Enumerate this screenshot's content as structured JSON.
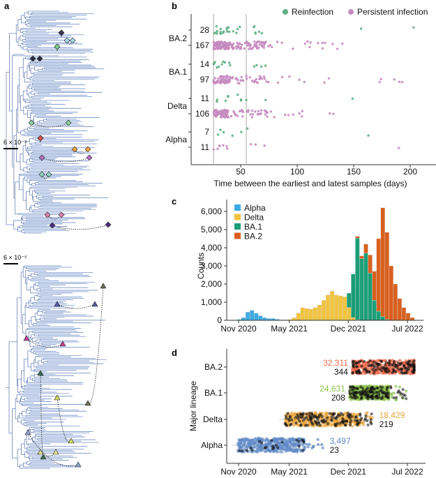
{
  "panels": {
    "a": "a",
    "b": "b",
    "c": "c",
    "d": "d"
  },
  "panel_a": {
    "scale_bar_label": "6 × 10⁻⁵",
    "marker_shapes": [
      "diamond",
      "triangle"
    ],
    "branch_color": "#5b7fc0"
  },
  "chart_data": [
    {
      "panel": "b",
      "type": "scatter",
      "xlabel": "Time between the earliest and latest samples (days)",
      "x_ticks": [
        "50",
        "100",
        "150",
        "200"
      ],
      "xlim": [
        0,
        215
      ],
      "reference_lines_days": [
        26,
        55
      ],
      "legend": [
        {
          "name": "Reinfection",
          "color": "#5fae83"
        },
        {
          "name": "Persistent infection",
          "color": "#c68bc0"
        }
      ],
      "legend_placement": "top-right",
      "categories": [
        "BA.2",
        "BA.1",
        "Delta",
        "Alpha"
      ],
      "rows": [
        {
          "lineage": "BA.2",
          "type": "Reinfection",
          "count": "28",
          "max_days": 203
        },
        {
          "lineage": "BA.2",
          "type": "Persistent infection",
          "count": "167",
          "max_days": 140
        },
        {
          "lineage": "BA.1",
          "type": "Reinfection",
          "count": "14",
          "max_days": 72
        },
        {
          "lineage": "BA.1",
          "type": "Persistent infection",
          "count": "97",
          "max_days": 193
        },
        {
          "lineage": "Delta",
          "type": "Reinfection",
          "count": "11",
          "max_days": 149
        },
        {
          "lineage": "Delta",
          "type": "Persistent infection",
          "count": "106",
          "max_days": 132
        },
        {
          "lineage": "Alpha",
          "type": "Reinfection",
          "count": "7",
          "max_days": 163
        },
        {
          "lineage": "Alpha",
          "type": "Persistent infection",
          "count": "11",
          "max_days": 190
        }
      ]
    },
    {
      "panel": "c",
      "type": "bar",
      "stacked": true,
      "ylabel": "Counts",
      "ylim": [
        0,
        6500
      ],
      "y_ticks": [
        "0",
        "1,000",
        "2,000",
        "3,000",
        "4,000",
        "5,000",
        "6,000"
      ],
      "x_ticks": [
        "Nov 2020",
        "May 2021",
        "Dec 2021",
        "Jul 2022"
      ],
      "bin": "half-month, from Nov 2020",
      "legend_placement": "top-left",
      "series": [
        {
          "name": "Alpha",
          "color": "#3eaae2",
          "values": [
            50,
            150,
            450,
            550,
            400,
            250,
            150,
            100,
            100,
            60,
            30,
            10,
            0,
            0,
            0,
            0,
            0,
            0,
            0,
            0,
            0,
            0,
            0,
            0,
            0,
            0,
            0,
            0,
            0,
            0,
            0,
            0,
            0,
            0,
            0,
            0,
            0,
            0,
            0,
            0,
            0,
            0
          ]
        },
        {
          "name": "Delta",
          "color": "#f1c340",
          "values": [
            0,
            0,
            0,
            0,
            0,
            0,
            0,
            0,
            0,
            0,
            0,
            20,
            50,
            150,
            400,
            700,
            650,
            620,
            700,
            850,
            1100,
            1400,
            1600,
            1400,
            1350,
            1300,
            700,
            150,
            30,
            0,
            0,
            0,
            0,
            0,
            0,
            0,
            0,
            0,
            0,
            0,
            0,
            0
          ]
        },
        {
          "name": "BA.1",
          "color": "#1b9e77",
          "values": [
            0,
            0,
            0,
            0,
            0,
            0,
            0,
            0,
            0,
            0,
            0,
            0,
            0,
            0,
            0,
            0,
            0,
            0,
            0,
            0,
            0,
            0,
            0,
            0,
            0,
            0,
            800,
            2400,
            4500,
            3400,
            3700,
            2600,
            1100,
            500,
            200,
            50,
            0,
            0,
            0,
            0,
            0,
            0
          ]
        },
        {
          "name": "BA.2",
          "color": "#d9601f",
          "values": [
            0,
            0,
            0,
            0,
            0,
            0,
            0,
            0,
            0,
            0,
            0,
            0,
            0,
            0,
            0,
            0,
            0,
            0,
            0,
            0,
            0,
            0,
            0,
            0,
            0,
            0,
            0,
            0,
            100,
            150,
            500,
            1000,
            1600,
            4000,
            6000,
            4800,
            3000,
            2000,
            1200,
            700,
            400,
            150
          ]
        }
      ]
    },
    {
      "panel": "d",
      "type": "scatter",
      "ylabel": "Major lineage",
      "x_ticks": [
        "Nov 2020",
        "May 2021",
        "Dec 2021",
        "Jul 2022"
      ],
      "categories": [
        "BA.2",
        "BA.1",
        "Delta",
        "Alpha"
      ],
      "lineages": [
        {
          "name": "BA.2",
          "color": "#f26a4b",
          "total": "32,311",
          "highlighted": "344",
          "start": "2021-12-15",
          "end": "2022-07-25",
          "outlier_end": "2022-07-25",
          "label_side": "left"
        },
        {
          "name": "BA.1",
          "color": "#8cc249",
          "total": "24,631",
          "highlighted": "208",
          "start": "2021-12-05",
          "end": "2022-04-25",
          "outlier_end": "2022-07-01",
          "label_side": "left"
        },
        {
          "name": "Delta",
          "color": "#e9a43a",
          "total": "18,429",
          "highlighted": "219",
          "start": "2021-04-15",
          "end": "2022-01-15",
          "outlier_end": "2022-03-01",
          "label_side": "right"
        },
        {
          "name": "Alpha",
          "color": "#5c86c5",
          "total": "3,497",
          "highlighted": "23",
          "start": "2020-10-28",
          "end": "2021-06-25",
          "outlier_end": "2021-09-05",
          "label_side": "right"
        }
      ]
    }
  ]
}
